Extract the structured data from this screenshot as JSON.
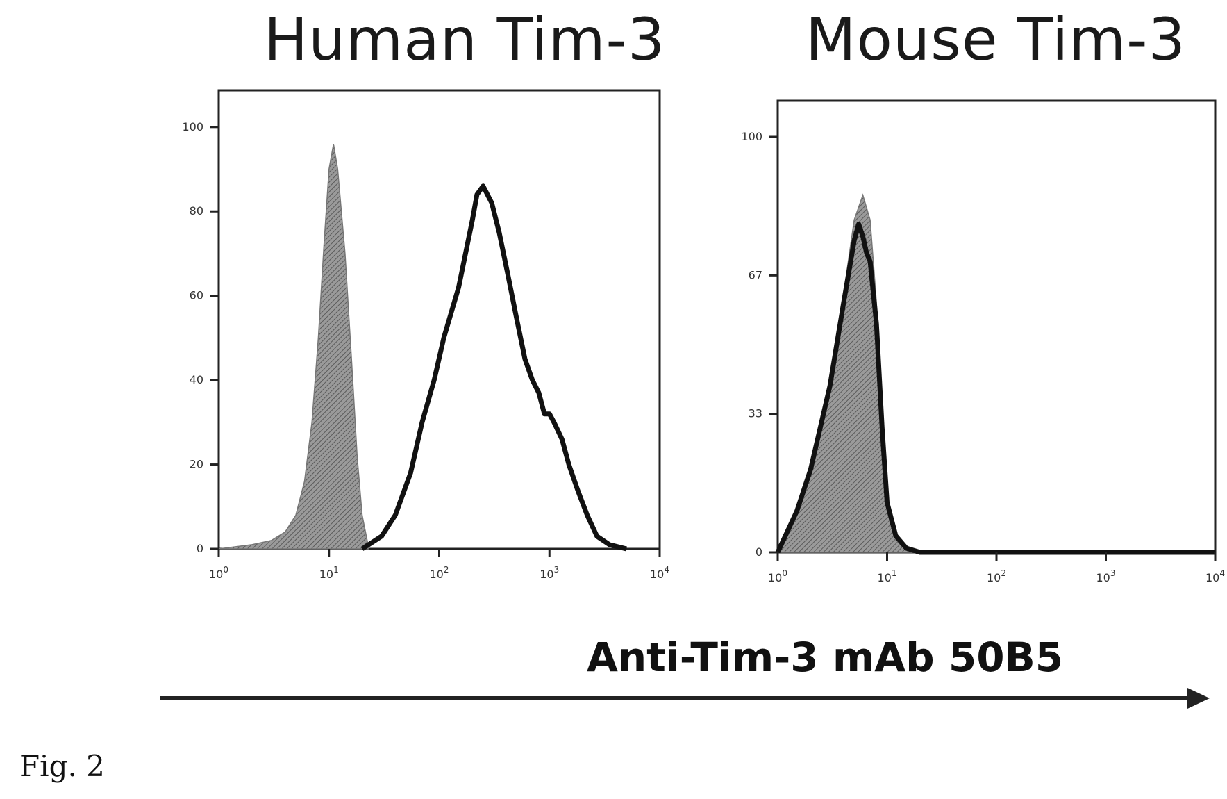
{
  "figure_label": "Fig. 2",
  "axis_caption": "Anti-Tim-3 mAb 50B5",
  "chart_data": [
    {
      "type": "area",
      "title": "Human Tim-3",
      "xscale": "log",
      "xlim": [
        1,
        10000
      ],
      "ylim": [
        0,
        100
      ],
      "x_tick_labels": [
        "10^0",
        "10^1",
        "10^2",
        "10^3",
        "10^4"
      ],
      "y_tick_labels": [
        "0",
        "20",
        "40",
        "60",
        "80",
        "100"
      ],
      "series": [
        {
          "style": "filled-gray",
          "x": [
            1,
            2,
            3,
            4,
            5,
            6,
            7,
            8,
            9,
            10,
            11,
            12,
            14,
            16,
            18,
            20,
            23
          ],
          "y": [
            0,
            1,
            2,
            4,
            8,
            16,
            30,
            50,
            72,
            90,
            96,
            90,
            70,
            45,
            22,
            8,
            0
          ]
        },
        {
          "style": "black-outline",
          "x": [
            20,
            30,
            40,
            55,
            70,
            90,
            110,
            150,
            200,
            220,
            250,
            300,
            350,
            420,
            500,
            600,
            700,
            800,
            900,
            1000,
            1100,
            1300,
            1500,
            1800,
            2200,
            2700,
            3500,
            5000
          ],
          "y": [
            0,
            3,
            8,
            18,
            30,
            40,
            50,
            62,
            78,
            84,
            86,
            82,
            75,
            65,
            55,
            45,
            40,
            37,
            32,
            32,
            30,
            26,
            20,
            14,
            8,
            3,
            1,
            0
          ]
        }
      ]
    },
    {
      "type": "area",
      "title": "Mouse Tim-3",
      "xscale": "log",
      "xlim": [
        1,
        10000
      ],
      "ylim": [
        0,
        100
      ],
      "x_tick_labels": [
        "10^0",
        "10^1",
        "10^2",
        "10^3",
        "10^4"
      ],
      "y_tick_labels": [
        "0",
        "33",
        "67",
        "100"
      ],
      "series": [
        {
          "style": "filled-gray",
          "x": [
            1,
            1.5,
            2,
            3,
            4,
            5,
            6,
            7,
            8,
            9,
            10,
            12,
            15,
            20
          ],
          "y": [
            0,
            10,
            20,
            42,
            62,
            80,
            86,
            80,
            60,
            30,
            10,
            3,
            1,
            0
          ]
        },
        {
          "style": "black-outline",
          "x": [
            1,
            1.5,
            2,
            3,
            4,
            5,
            5.5,
            6,
            6.5,
            7,
            8,
            9,
            10,
            12,
            15,
            20,
            50,
            10000
          ],
          "y": [
            0,
            10,
            20,
            40,
            60,
            75,
            79,
            76,
            72,
            70,
            55,
            30,
            12,
            4,
            1,
            0,
            0,
            0
          ]
        }
      ]
    }
  ]
}
